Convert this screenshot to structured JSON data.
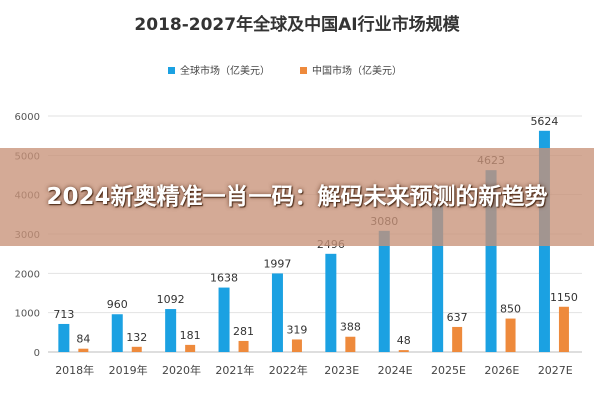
{
  "overlay": {
    "headline": "2024新奥精准一肖一码：解码未来预测的新趋势"
  },
  "chart_data": {
    "type": "bar",
    "title": "2018-2027年全球及中国AI行业市场规模",
    "xlabel": "",
    "ylabel": "",
    "ylim": [
      0,
      6000
    ],
    "yticks": [
      0,
      1000,
      2000,
      3000,
      4000,
      5000,
      6000
    ],
    "grid": true,
    "legend_position": "top-center",
    "categories": [
      "2018年",
      "2019年",
      "2020年",
      "2021年",
      "2022年",
      "2023E",
      "2024E",
      "2025E",
      "2026E",
      "2027E"
    ],
    "series": [
      {
        "name": "全球市场（亿美元）",
        "color": "#1ba1e2",
        "values": [
          713,
          960,
          1092,
          1638,
          1997,
          2496,
          3080,
          3784,
          4623,
          5624
        ],
        "labels": [
          "713",
          "960",
          "1092",
          "1638",
          "1997",
          "2496",
          "3080",
          "",
          "4623",
          "5624"
        ]
      },
      {
        "name": "中国市场（亿美元）",
        "color": "#ee8a3c",
        "values": [
          84,
          132,
          181,
          281,
          319,
          388,
          48,
          637,
          850,
          1150
        ],
        "labels": [
          "84",
          "132",
          "181",
          "281",
          "319",
          "388",
          "48",
          "637",
          "850",
          "1150"
        ]
      }
    ]
  }
}
